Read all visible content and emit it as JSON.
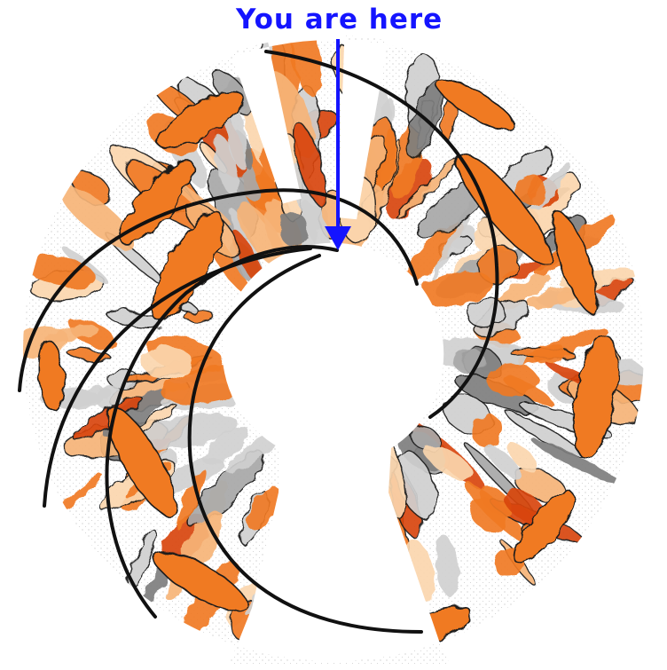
{
  "annotation": {
    "label": "You are here",
    "color": "#1414ff"
  },
  "palette": {
    "strong": "#d8450c",
    "medium": "#f07a24",
    "light": "#f6b478",
    "pale": "#fbd6ae",
    "gray_dark": "#7e7e7e",
    "gray_mid": "#a8a8a8",
    "gray_light": "#d0d0d0",
    "contour": "#1a1a1a",
    "spiral_arm": "#111111",
    "background": "#ffffff"
  }
}
